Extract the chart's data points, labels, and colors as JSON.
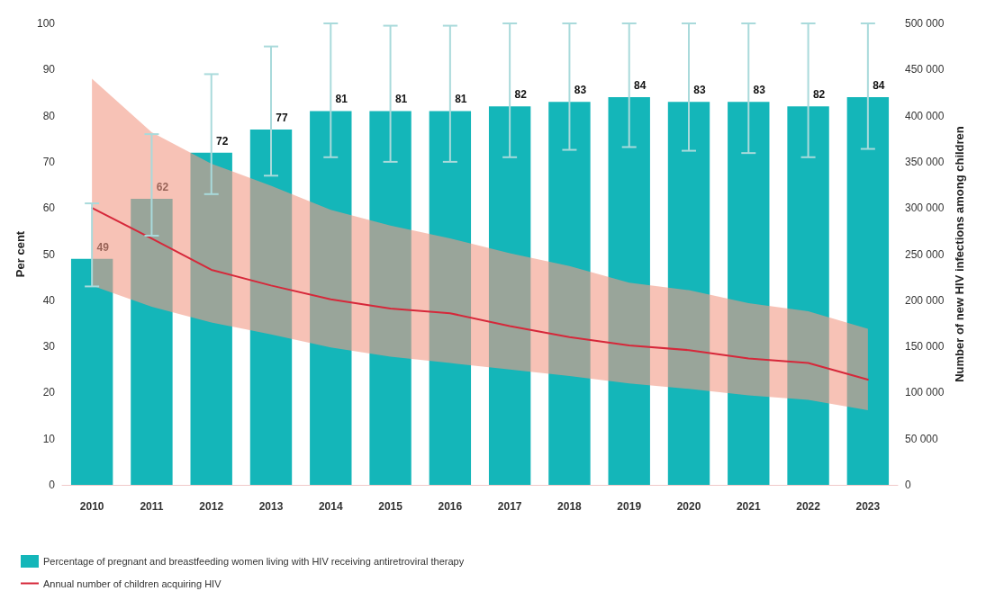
{
  "chart_data": {
    "type": "bar",
    "ylabel": "Per cent",
    "y2label": "Number of new HIV infections among children",
    "categories": [
      "2010",
      "2011",
      "2012",
      "2013",
      "2014",
      "2015",
      "2016",
      "2017",
      "2018",
      "2019",
      "2020",
      "2021",
      "2022",
      "2023"
    ],
    "series": [
      {
        "name": "Percentage of pregnant and breastfeeding women living with HIV receiving antiretroviral therapy",
        "color": "#14b6b9",
        "values": [
          49,
          62,
          72,
          77,
          81,
          81,
          81,
          82,
          83,
          84,
          83,
          83,
          82,
          84
        ],
        "value_labels": [
          "49",
          "62",
          "72",
          "77",
          "81",
          "81",
          "81",
          "82",
          "83",
          "84",
          "83",
          "83",
          "82",
          "84"
        ],
        "errors": [
          [
            43,
            61
          ],
          [
            54,
            76
          ],
          [
            63,
            89
          ],
          [
            67,
            95
          ],
          [
            71,
            100
          ],
          [
            70,
            99.5
          ],
          [
            70,
            99.5
          ],
          [
            71,
            100
          ],
          [
            72.6,
            100
          ],
          [
            73.2,
            100
          ],
          [
            72.4,
            100
          ],
          [
            71.9,
            100
          ],
          [
            71,
            100
          ],
          [
            72.8,
            100
          ]
        ]
      },
      {
        "type": "line",
        "axis": "y2",
        "name": "Annual number of children acquiring HIV",
        "color": "#d6283a",
        "values": [
          300000,
          267000,
          233000,
          216000,
          201000,
          191000,
          186000,
          172000,
          160000,
          151000,
          146000,
          137000,
          132000,
          114000
        ],
        "lower": [
          216000,
          193000,
          176000,
          163000,
          149000,
          139000,
          132000,
          125000,
          118000,
          110000,
          104000,
          97000,
          92000,
          81000
        ],
        "upper": [
          440000,
          382000,
          348000,
          324000,
          298000,
          281000,
          267000,
          251000,
          237000,
          219000,
          211000,
          197000,
          188000,
          169000
        ]
      }
    ],
    "ylim": [
      0,
      100
    ],
    "yticks": [
      0,
      10,
      20,
      30,
      40,
      50,
      60,
      70,
      80,
      90,
      100
    ],
    "y2lim": [
      0,
      500000
    ],
    "y2ticks": [
      0,
      {
        "value": 50000,
        "label": "50 000"
      },
      {
        "value": 100000,
        "label": "100 000"
      },
      {
        "value": 150000,
        "label": "150 000"
      },
      {
        "value": 200000,
        "label": "200 000"
      },
      {
        "value": 250000,
        "label": "250 000"
      },
      {
        "value": 300000,
        "label": "300 000"
      },
      {
        "value": 350000,
        "label": "350 000"
      },
      {
        "value": 400000,
        "label": "400 000"
      },
      {
        "value": 450000,
        "label": "450 000"
      },
      {
        "value": 500000,
        "label": "500 000"
      }
    ],
    "grid": false,
    "legend": "bottom left",
    "marker": "none",
    "line_style": "solid"
  }
}
